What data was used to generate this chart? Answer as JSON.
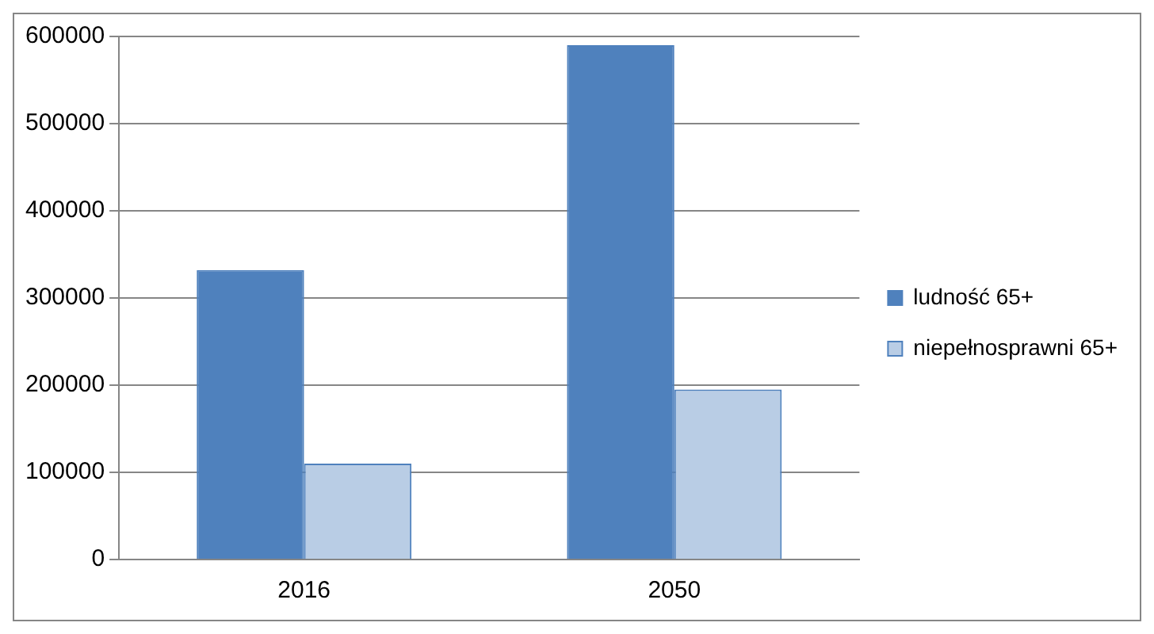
{
  "chart_data": {
    "type": "bar",
    "categories": [
      "2016",
      "2050"
    ],
    "series": [
      {
        "name": "ludność 65+",
        "color": "#4f81bd",
        "values": [
          332000,
          590000
        ]
      },
      {
        "name": "niepełnosprawni 65+",
        "color": "#b9cde5",
        "values": [
          110000,
          195000
        ]
      }
    ],
    "ylim": [
      0,
      600000
    ],
    "yticks": [
      0,
      100000,
      200000,
      300000,
      400000,
      500000,
      600000
    ],
    "grid": "y",
    "legend": "right"
  }
}
